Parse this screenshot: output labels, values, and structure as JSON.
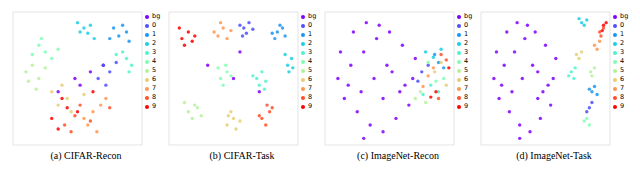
{
  "chart_data": [
    {
      "type": "scatter",
      "title": "(a) CIFAR-Recon",
      "xlim": [
        0,
        100
      ],
      "ylim": [
        0,
        100
      ],
      "tick_labels": false,
      "legend": "upper right",
      "marker": "circle",
      "series": [
        {
          "name": "bg",
          "color": "#8000ff",
          "x": [
            48,
            52,
            60,
            35,
            70
          ],
          "y": [
            50,
            45,
            55,
            40,
            60
          ]
        },
        {
          "name": "0",
          "color": "#4d4ffc",
          "x": [
            70,
            75,
            66,
            80,
            72
          ],
          "y": [
            60,
            55,
            50,
            62,
            45
          ]
        },
        {
          "name": "1",
          "color": "#1a96f3",
          "x": [
            78,
            85,
            82,
            88,
            75,
            90
          ],
          "y": [
            88,
            90,
            82,
            85,
            80,
            78
          ]
        },
        {
          "name": "2",
          "color": "#1acfe3",
          "x": [
            50,
            55,
            60,
            58,
            52,
            63
          ],
          "y": [
            92,
            88,
            90,
            84,
            85,
            80
          ]
        },
        {
          "name": "3",
          "color": "#4df3cf",
          "x": [
            88,
            92,
            85,
            90,
            80
          ],
          "y": [
            65,
            60,
            70,
            55,
            68
          ]
        },
        {
          "name": "4",
          "color": "#80ffb4",
          "x": [
            20,
            25,
            15,
            30,
            22,
            35
          ],
          "y": [
            75,
            70,
            68,
            65,
            80,
            72
          ]
        },
        {
          "name": "5",
          "color": "#b3f396",
          "x": [
            10,
            15,
            12,
            20,
            18,
            25
          ],
          "y": [
            55,
            60,
            48,
            50,
            42,
            58
          ]
        },
        {
          "name": "6",
          "color": "#e6cf73",
          "x": [
            35,
            42,
            30,
            45,
            38,
            55
          ],
          "y": [
            30,
            35,
            40,
            25,
            45,
            38
          ]
        },
        {
          "name": "7",
          "color": "#ff964f",
          "x": [
            55,
            62,
            68,
            58,
            72,
            65
          ],
          "y": [
            20,
            25,
            30,
            15,
            35,
            10
          ]
        },
        {
          "name": "8",
          "color": "#ff4f28",
          "x": [
            40,
            48,
            52,
            45,
            60,
            75
          ],
          "y": [
            15,
            22,
            30,
            10,
            18,
            28
          ]
        },
        {
          "name": "9",
          "color": "#ff0000",
          "x": [
            30,
            35,
            50,
            42,
            38,
            62
          ],
          "y": [
            20,
            12,
            25,
            28,
            35,
            40
          ]
        }
      ]
    },
    {
      "type": "scatter",
      "title": "(b) CIFAR-Task",
      "xlim": [
        0,
        100
      ],
      "ylim": [
        0,
        100
      ],
      "tick_labels": false,
      "legend": "upper right",
      "marker": "circle",
      "series": [
        {
          "name": "bg",
          "color": "#8000ff",
          "x": [
            50,
            30,
            70,
            55
          ],
          "y": [
            50,
            60,
            40,
            70
          ]
        },
        {
          "name": "0",
          "color": "#4d4ffc",
          "x": [
            58,
            62,
            55,
            60,
            65,
            57
          ],
          "y": [
            88,
            92,
            90,
            84,
            87,
            82
          ]
        },
        {
          "name": "1",
          "color": "#1a96f3",
          "x": [
            84,
            88,
            82,
            90,
            86,
            80
          ],
          "y": [
            85,
            88,
            80,
            82,
            90,
            84
          ]
        },
        {
          "name": "2",
          "color": "#1acfe3",
          "x": [
            92,
            95,
            90,
            96,
            93
          ],
          "y": [
            60,
            65,
            68,
            58,
            55
          ]
        },
        {
          "name": "3",
          "color": "#4df3cf",
          "x": [
            68,
            72,
            75,
            70,
            65,
            74
          ],
          "y": [
            50,
            55,
            48,
            45,
            52,
            42
          ]
        },
        {
          "name": "4",
          "color": "#80ffb4",
          "x": [
            40,
            45,
            42,
            48,
            38,
            44
          ],
          "y": [
            50,
            55,
            45,
            52,
            58,
            60
          ]
        },
        {
          "name": "5",
          "color": "#b3f396",
          "x": [
            15,
            20,
            18,
            22,
            12,
            25
          ],
          "y": [
            25,
            30,
            20,
            28,
            32,
            22
          ]
        },
        {
          "name": "6",
          "color": "#e6cf73",
          "x": [
            45,
            50,
            48,
            55,
            52,
            46
          ],
          "y": [
            15,
            20,
            25,
            18,
            12,
            22
          ]
        },
        {
          "name": "7",
          "color": "#ff964f",
          "x": [
            38,
            42,
            35,
            45,
            40,
            48
          ],
          "y": [
            82,
            88,
            85,
            80,
            92,
            86
          ]
        },
        {
          "name": "8",
          "color": "#ff4f28",
          "x": [
            72,
            78,
            75,
            80,
            70,
            76
          ],
          "y": [
            20,
            25,
            15,
            28,
            22,
            30
          ]
        },
        {
          "name": "9",
          "color": "#ff0000",
          "x": [
            10,
            15,
            12,
            18,
            8,
            20
          ],
          "y": [
            80,
            85,
            75,
            78,
            88,
            82
          ]
        }
      ]
    },
    {
      "type": "scatter",
      "title": "(c) ImageNet-Recon",
      "xlim": [
        0,
        100
      ],
      "ylim": [
        0,
        100
      ],
      "tick_labels": false,
      "legend": "upper right",
      "marker": "circle",
      "series": [
        {
          "name": "bg",
          "color": "#8000ff",
          "x": [
            10,
            20,
            30,
            40,
            50,
            60,
            70,
            15,
            25,
            35,
            45,
            55,
            65,
            12,
            22,
            32,
            42,
            52,
            62,
            18,
            28,
            38,
            48,
            58,
            68,
            30,
            45
          ],
          "y": [
            50,
            60,
            70,
            80,
            85,
            75,
            65,
            35,
            25,
            15,
            10,
            20,
            30,
            70,
            85,
            92,
            90,
            55,
            45,
            45,
            40,
            50,
            60,
            40,
            50,
            5,
            35
          ]
        },
        {
          "name": "0",
          "color": "#4d4ffc",
          "x": [
            75,
            80,
            72
          ],
          "y": [
            55,
            60,
            48
          ]
        },
        {
          "name": "1",
          "color": "#1a96f3",
          "x": [
            88,
            92,
            85
          ],
          "y": [
            62,
            58,
            68
          ]
        },
        {
          "name": "2",
          "color": "#1acfe3",
          "x": [
            78,
            84,
            90
          ],
          "y": [
            70,
            66,
            72
          ]
        },
        {
          "name": "3",
          "color": "#4df3cf",
          "x": [
            82,
            88,
            76
          ],
          "y": [
            45,
            40,
            38
          ]
        },
        {
          "name": "4",
          "color": "#80ffb4",
          "x": [
            92,
            86,
            80
          ],
          "y": [
            50,
            48,
            62
          ]
        },
        {
          "name": "5",
          "color": "#b3f396",
          "x": [
            74,
            70,
            78
          ],
          "y": [
            40,
            35,
            32
          ]
        },
        {
          "name": "6",
          "color": "#e6cf73",
          "x": [
            85,
            90,
            94
          ],
          "y": [
            55,
            62,
            45
          ]
        },
        {
          "name": "7",
          "color": "#ff964f",
          "x": [
            80,
            76,
            84
          ],
          "y": [
            52,
            44,
            58
          ]
        },
        {
          "name": "8",
          "color": "#ff4f28",
          "x": [
            90,
            94,
            88
          ],
          "y": [
            68,
            64,
            35
          ]
        },
        {
          "name": "9",
          "color": "#ff0000",
          "x": [
            86,
            82,
            96
          ],
          "y": [
            40,
            36,
            58
          ]
        }
      ]
    },
    {
      "type": "scatter",
      "title": "(d) ImageNet-Task",
      "xlim": [
        0,
        100
      ],
      "ylim": [
        0,
        100
      ],
      "tick_labels": false,
      "legend": "upper right",
      "marker": "circle",
      "series": [
        {
          "name": "bg",
          "color": "#8000ff",
          "x": [
            10,
            18,
            26,
            34,
            42,
            50,
            58,
            14,
            22,
            30,
            38,
            46,
            54,
            12,
            20,
            28,
            36,
            44,
            52,
            16,
            24,
            32,
            40,
            48,
            56,
            30,
            44
          ],
          "y": [
            50,
            60,
            70,
            80,
            85,
            75,
            65,
            35,
            25,
            15,
            10,
            20,
            30,
            70,
            85,
            92,
            90,
            55,
            45,
            45,
            40,
            50,
            60,
            40,
            50,
            5,
            35
          ]
        },
        {
          "name": "0",
          "color": "#4d4ffc",
          "x": [
            84,
            86,
            82
          ],
          "y": [
            28,
            32,
            25
          ]
        },
        {
          "name": "1",
          "color": "#1a96f3",
          "x": [
            86,
            88,
            84,
            90
          ],
          "y": [
            40,
            44,
            42,
            38
          ]
        },
        {
          "name": "2",
          "color": "#1acfe3",
          "x": [
            78,
            82,
            80,
            76
          ],
          "y": [
            92,
            94,
            90,
            95
          ]
        },
        {
          "name": "3",
          "color": "#4df3cf",
          "x": [
            70,
            73,
            68,
            72
          ],
          "y": [
            55,
            58,
            52,
            50
          ]
        },
        {
          "name": "4",
          "color": "#80ffb4",
          "x": [
            80,
            84,
            82
          ],
          "y": [
            18,
            15,
            20
          ]
        },
        {
          "name": "5",
          "color": "#b3f396",
          "x": [
            85,
            88,
            86
          ],
          "y": [
            55,
            58,
            52
          ]
        },
        {
          "name": "6",
          "color": "#e6cf73",
          "x": [
            74,
            78,
            76
          ],
          "y": [
            68,
            70,
            65
          ]
        },
        {
          "name": "7",
          "color": "#ff964f",
          "x": [
            88,
            92,
            90
          ],
          "y": [
            75,
            78,
            72
          ]
        },
        {
          "name": "8",
          "color": "#ff4f28",
          "x": [
            92,
            95,
            93
          ],
          "y": [
            85,
            88,
            82
          ]
        },
        {
          "name": "9",
          "color": "#ff0000",
          "x": [
            95,
            97,
            94
          ],
          "y": [
            90,
            92,
            86
          ]
        }
      ]
    }
  ]
}
